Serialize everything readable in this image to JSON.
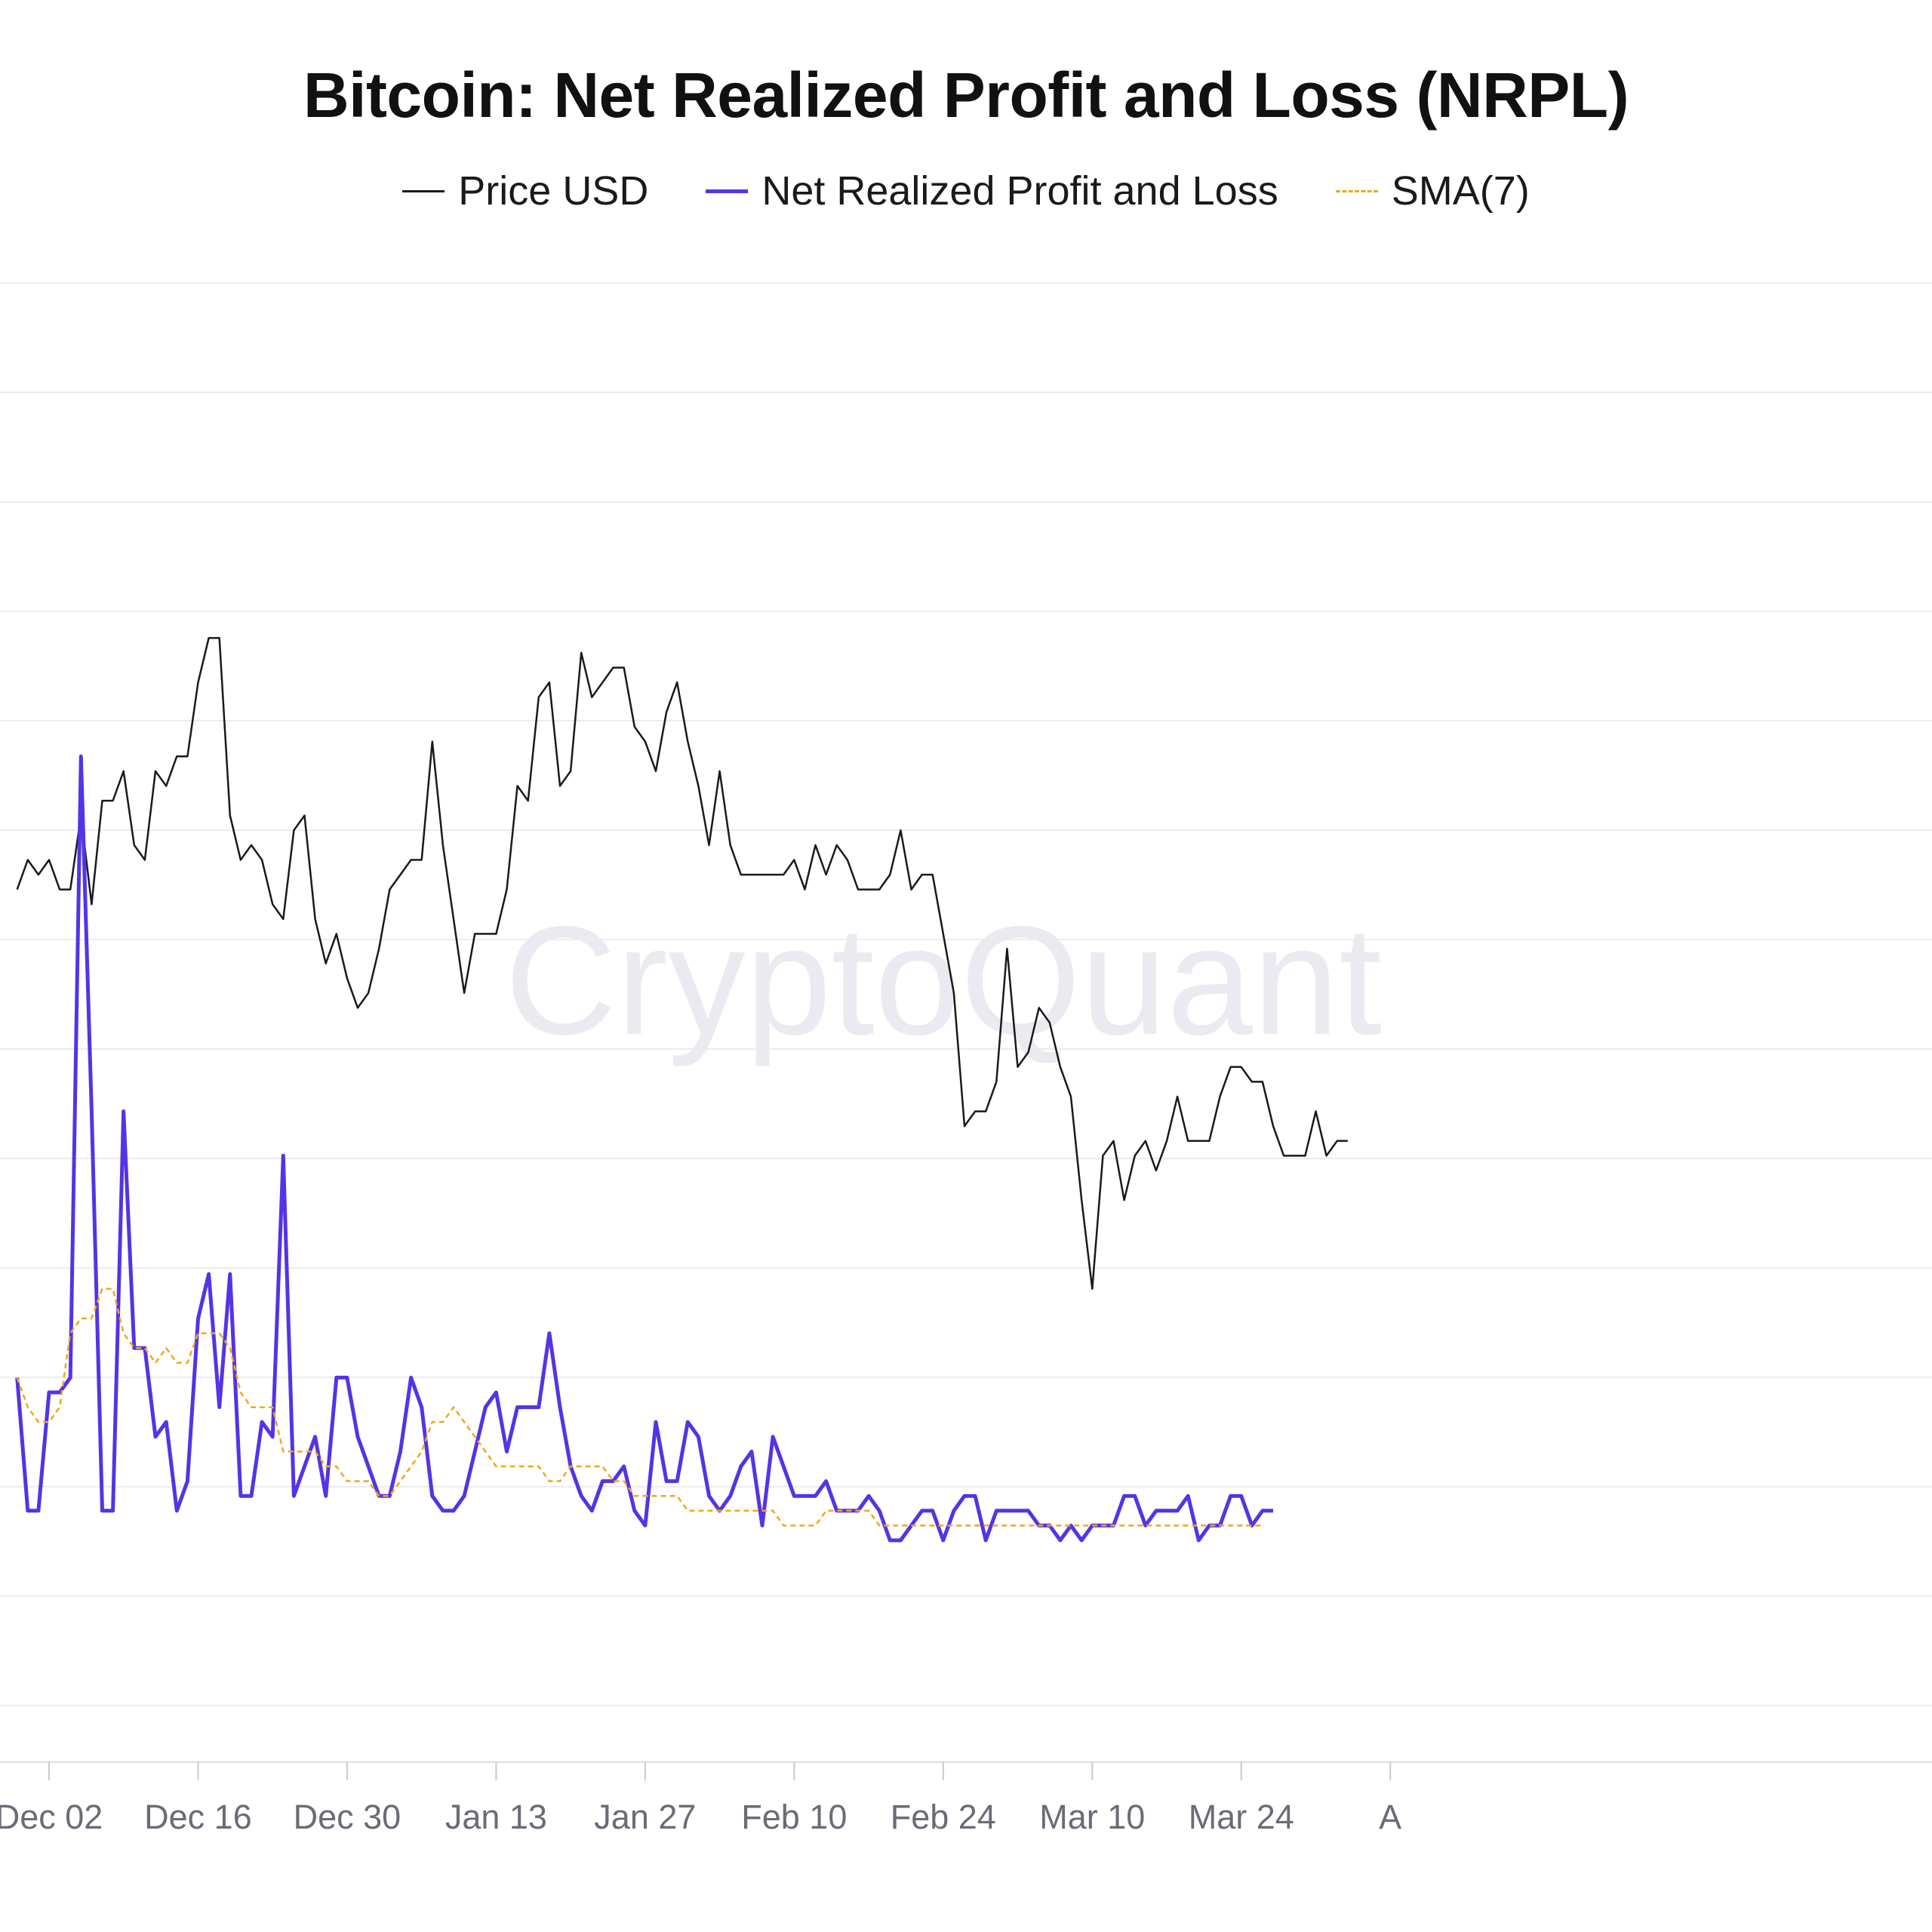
{
  "chart_data": {
    "type": "line",
    "title": "Bitcoin: Net Realized Profit and Loss (NRPL)",
    "watermark": "CryptoQuant",
    "x_tick_labels": [
      "Dec 02",
      "Dec 16",
      "Dec 30",
      "Jan 13",
      "Jan 27",
      "Feb 10",
      "Feb 24",
      "Mar 10",
      "Mar 24",
      "A"
    ],
    "x_tick_day_index": [
      6,
      20,
      34,
      48,
      62,
      76,
      90,
      104,
      118,
      132
    ],
    "x_range": [
      3,
      130
    ],
    "grid": true,
    "legend_position": "top-center",
    "series": [
      {
        "name": "Price USD",
        "color": "#1a1a1a",
        "style": "solid",
        "relative_level": [
          0.59,
          0.61,
          0.6,
          0.61,
          0.59,
          0.59,
          0.64,
          0.58,
          0.65,
          0.65,
          0.67,
          0.62,
          0.61,
          0.67,
          0.66,
          0.68,
          0.68,
          0.73,
          0.76,
          0.76,
          0.64,
          0.61,
          0.62,
          0.61,
          0.58,
          0.57,
          0.63,
          0.64,
          0.57,
          0.54,
          0.56,
          0.53,
          0.51,
          0.52,
          0.55,
          0.59,
          0.6,
          0.61,
          0.61,
          0.69,
          0.62,
          0.57,
          0.52,
          0.56,
          0.56,
          0.56,
          0.59,
          0.66,
          0.65,
          0.72,
          0.73,
          0.66,
          0.67,
          0.75,
          0.72,
          0.73,
          0.74,
          0.74,
          0.7,
          0.69,
          0.67,
          0.71,
          0.73,
          0.69,
          0.66,
          0.62,
          0.67,
          0.62,
          0.6,
          0.6,
          0.6,
          0.6,
          0.6,
          0.61,
          0.59,
          0.62,
          0.6,
          0.62,
          0.61,
          0.59,
          0.59,
          0.59,
          0.6,
          0.63,
          0.59,
          0.6,
          0.6,
          0.56,
          0.52,
          0.43,
          0.44,
          0.44,
          0.46,
          0.55,
          0.47,
          0.48,
          0.51,
          0.5,
          0.47,
          0.45,
          0.38,
          0.32,
          0.41,
          0.42,
          0.38,
          0.41,
          0.42,
          0.4,
          0.42,
          0.45,
          0.42,
          0.42,
          0.42,
          0.45,
          0.47,
          0.47,
          0.46,
          0.46,
          0.43,
          0.41,
          0.41,
          0.41,
          0.44,
          0.41,
          0.42,
          0.42
        ]
      },
      {
        "name": "Net Realized Profit and Loss",
        "color": "#5533e6",
        "style": "solid",
        "relative_level": [
          0.26,
          0.17,
          0.17,
          0.25,
          0.25,
          0.26,
          0.68,
          0.44,
          0.17,
          0.17,
          0.44,
          0.28,
          0.28,
          0.22,
          0.23,
          0.17,
          0.19,
          0.3,
          0.33,
          0.24,
          0.33,
          0.18,
          0.18,
          0.23,
          0.22,
          0.41,
          0.18,
          0.2,
          0.22,
          0.18,
          0.26,
          0.26,
          0.22,
          0.2,
          0.18,
          0.18,
          0.21,
          0.26,
          0.24,
          0.18,
          0.17,
          0.17,
          0.18,
          0.21,
          0.24,
          0.25,
          0.21,
          0.24,
          0.24,
          0.24,
          0.29,
          0.24,
          0.2,
          0.18,
          0.17,
          0.19,
          0.19,
          0.2,
          0.17,
          0.16,
          0.23,
          0.19,
          0.19,
          0.23,
          0.22,
          0.18,
          0.17,
          0.18,
          0.2,
          0.21,
          0.16,
          0.22,
          0.2,
          0.18,
          0.18,
          0.18,
          0.19,
          0.17,
          0.17,
          0.17,
          0.18,
          0.17,
          0.15,
          0.15,
          0.16,
          0.17,
          0.17,
          0.15,
          0.17,
          0.18,
          0.18,
          0.15,
          0.17,
          0.17,
          0.17,
          0.17,
          0.16,
          0.16,
          0.15,
          0.16,
          0.15,
          0.16,
          0.16,
          0.16,
          0.18,
          0.18,
          0.16,
          0.17,
          0.17,
          0.17,
          0.18,
          0.15,
          0.16,
          0.16,
          0.18,
          0.18,
          0.16,
          0.17,
          0.17
        ]
      },
      {
        "name": "SMA(7)",
        "color": "#f0a818",
        "style": "dashed",
        "relative_level": [
          0.26,
          0.24,
          0.23,
          0.23,
          0.24,
          0.29,
          0.3,
          0.3,
          0.32,
          0.32,
          0.29,
          0.28,
          0.28,
          0.27,
          0.28,
          0.27,
          0.27,
          0.29,
          0.29,
          0.29,
          0.28,
          0.25,
          0.24,
          0.24,
          0.24,
          0.21,
          0.21,
          0.21,
          0.21,
          0.2,
          0.2,
          0.19,
          0.19,
          0.19,
          0.18,
          0.18,
          0.19,
          0.2,
          0.21,
          0.23,
          0.23,
          0.24,
          0.23,
          0.22,
          0.21,
          0.2,
          0.2,
          0.2,
          0.2,
          0.2,
          0.19,
          0.19,
          0.2,
          0.2,
          0.2,
          0.2,
          0.19,
          0.19,
          0.18,
          0.18,
          0.18,
          0.18,
          0.18,
          0.17,
          0.17,
          0.17,
          0.17,
          0.17,
          0.17,
          0.17,
          0.17,
          0.17,
          0.16,
          0.16,
          0.16,
          0.16,
          0.17,
          0.17,
          0.17,
          0.17,
          0.17,
          0.16,
          0.16,
          0.16,
          0.16,
          0.16,
          0.16,
          0.16,
          0.16,
          0.16,
          0.16,
          0.16,
          0.16,
          0.16,
          0.16,
          0.16,
          0.16,
          0.16,
          0.16,
          0.16,
          0.16,
          0.16,
          0.16,
          0.16,
          0.16,
          0.16,
          0.16,
          0.16,
          0.16,
          0.16,
          0.16,
          0.16,
          0.16,
          0.16,
          0.16,
          0.16,
          0.16,
          0.16
        ]
      }
    ]
  }
}
